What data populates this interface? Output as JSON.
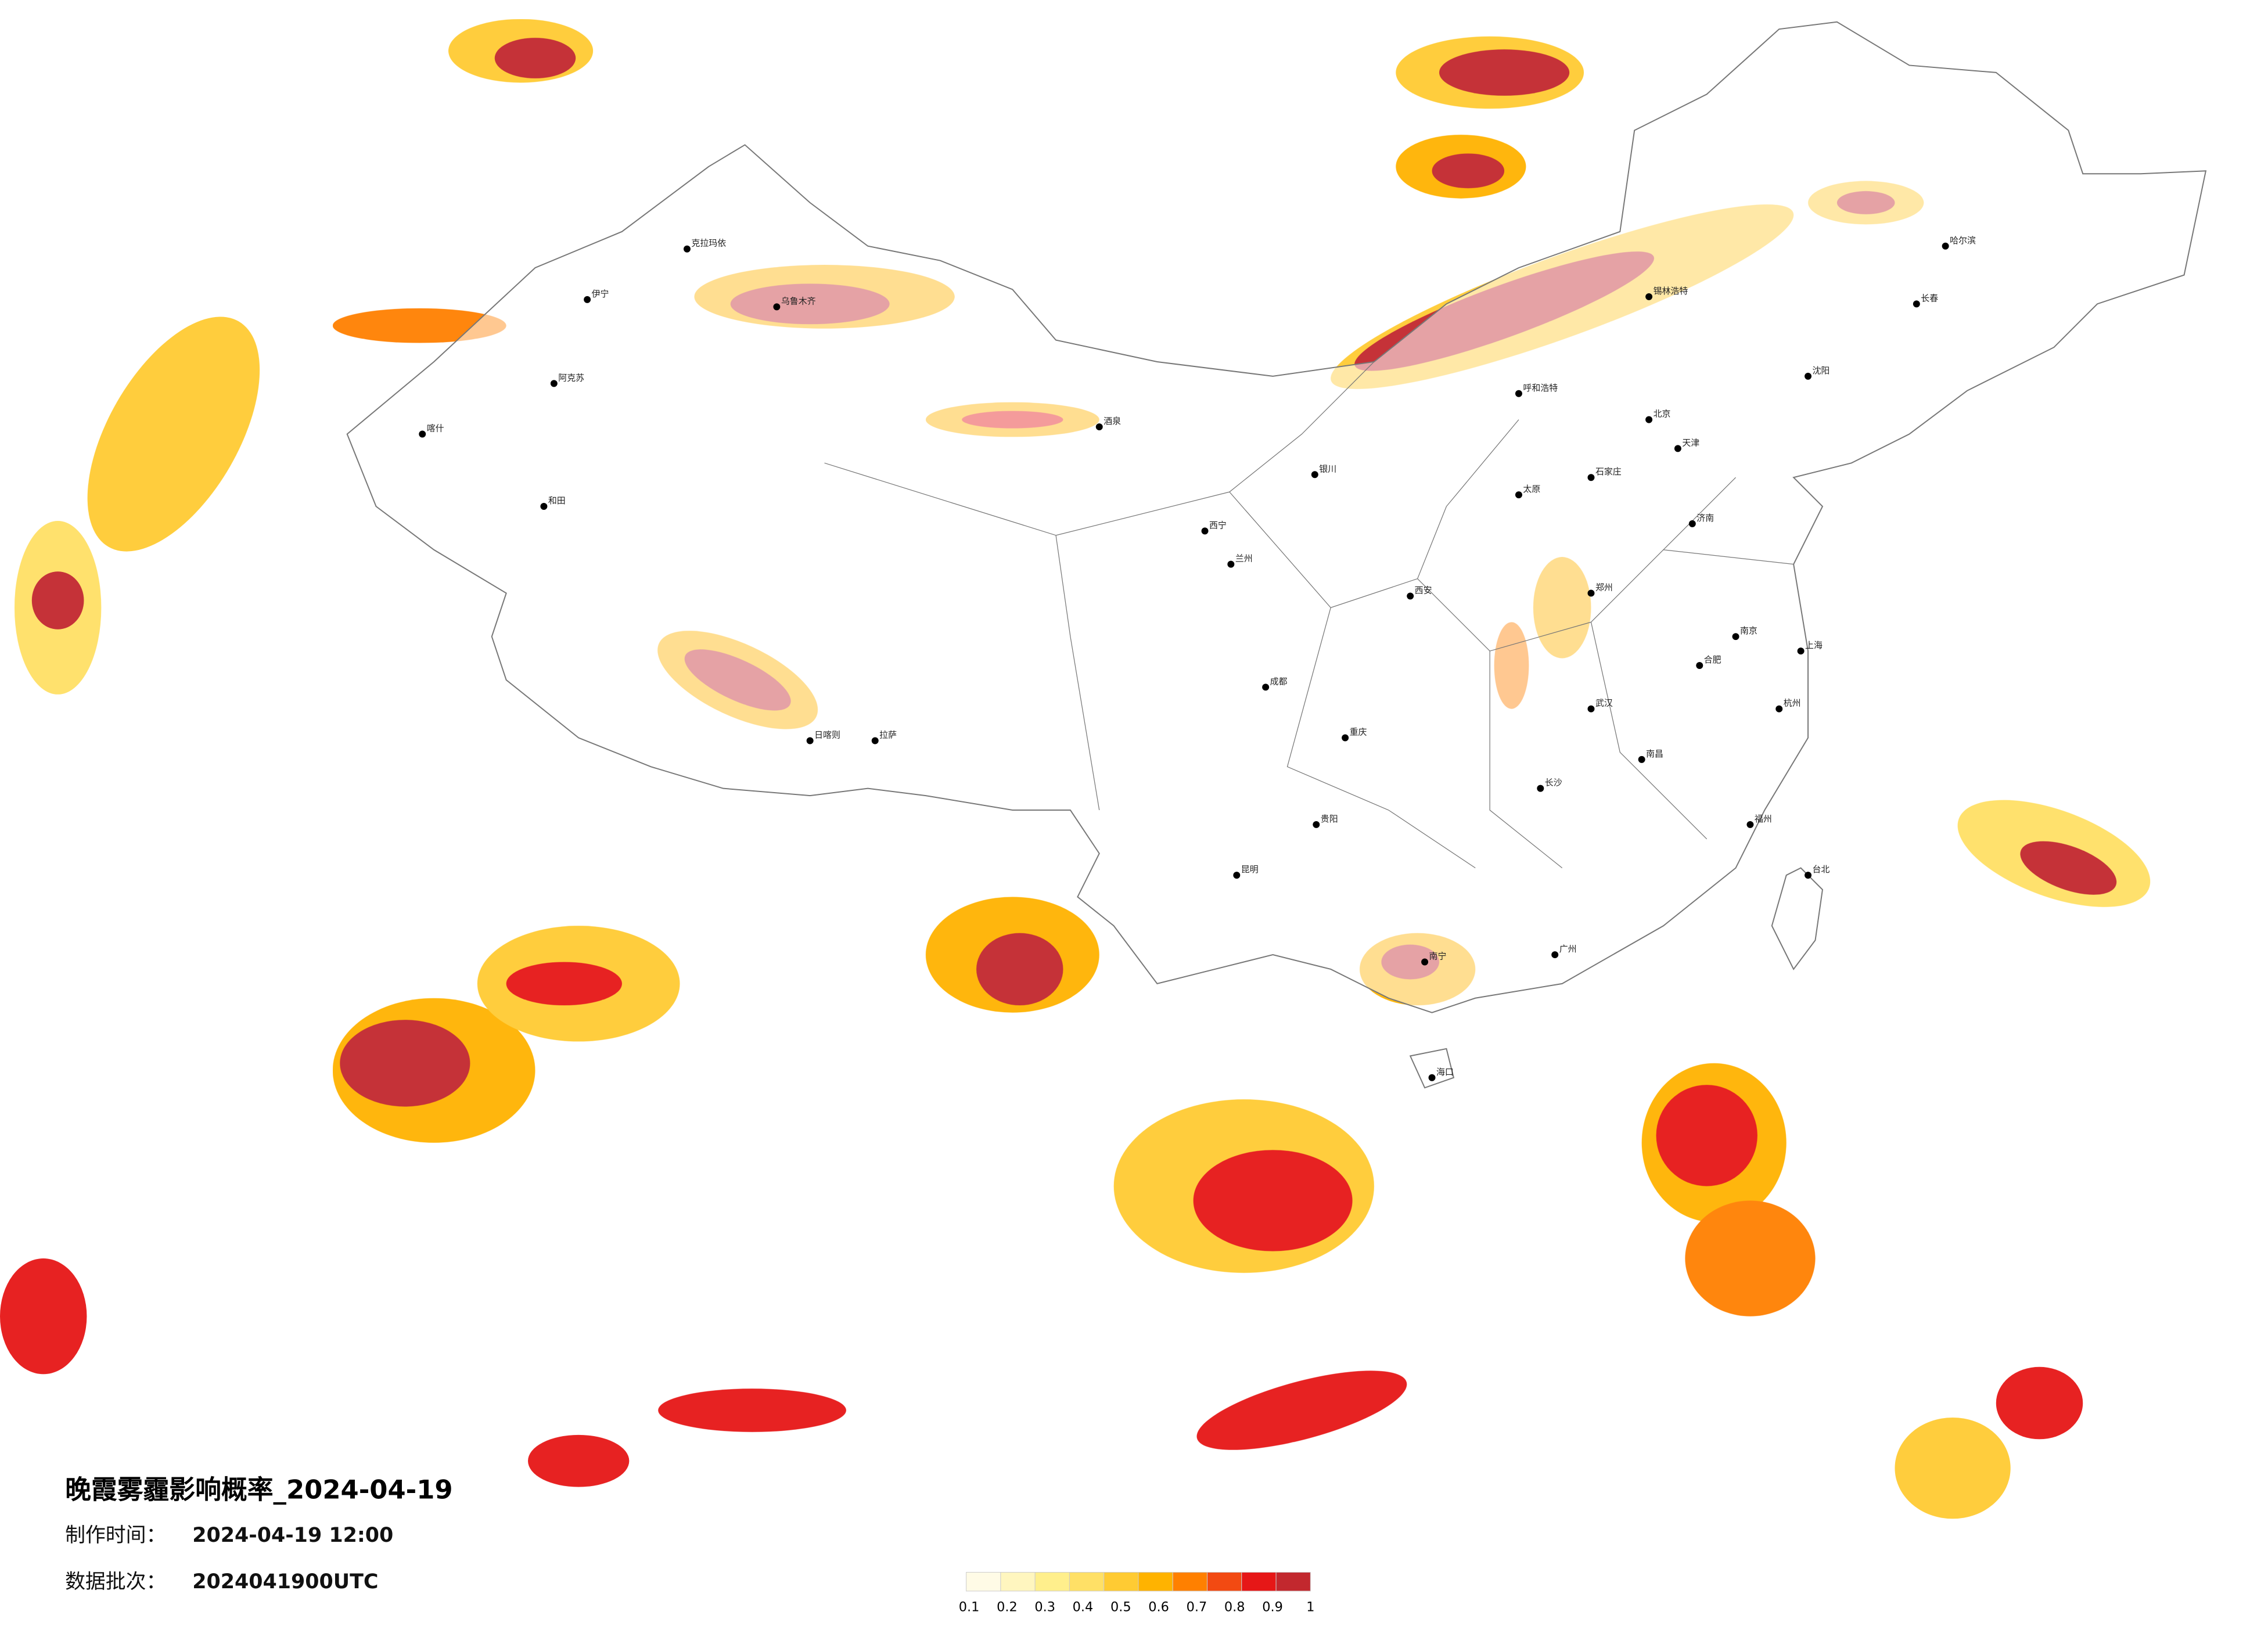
{
  "title": "晚霞雾霾影响概率_2024-04-19",
  "production": {
    "label": "制作时间：",
    "value": "2024-04-19 12:00"
  },
  "batch": {
    "label": "数据批次：",
    "value": "2024041900UTC"
  },
  "legend": {
    "colors": [
      "#fffbe6",
      "#fff6bf",
      "#ffef8c",
      "#ffe066",
      "#ffcb33",
      "#ffb300",
      "#ff8000",
      "#f24a12",
      "#e61717",
      "#c2282e"
    ],
    "ticks": [
      0.1,
      0.2,
      0.3,
      0.4,
      0.5,
      0.6,
      0.7,
      0.8,
      0.9,
      1
    ]
  },
  "cities": [
    "乌鲁木齐",
    "克拉玛依",
    "伊宁",
    "阿克苏",
    "和田",
    "喀什",
    "拉萨",
    "日喀则",
    "西宁",
    "兰州",
    "银川",
    "呼和浩特",
    "锡林浩特",
    "北京",
    "天津",
    "石家庄",
    "太原",
    "济南",
    "郑州",
    "西安",
    "成都",
    "重庆",
    "贵阳",
    "昆明",
    "南宁",
    "广州",
    "长沙",
    "武汉",
    "南京",
    "上海",
    "杭州",
    "福州",
    "南昌",
    "合肥",
    "沈阳",
    "长春",
    "哈尔滨",
    "海口",
    "台北",
    "酒泉"
  ]
}
